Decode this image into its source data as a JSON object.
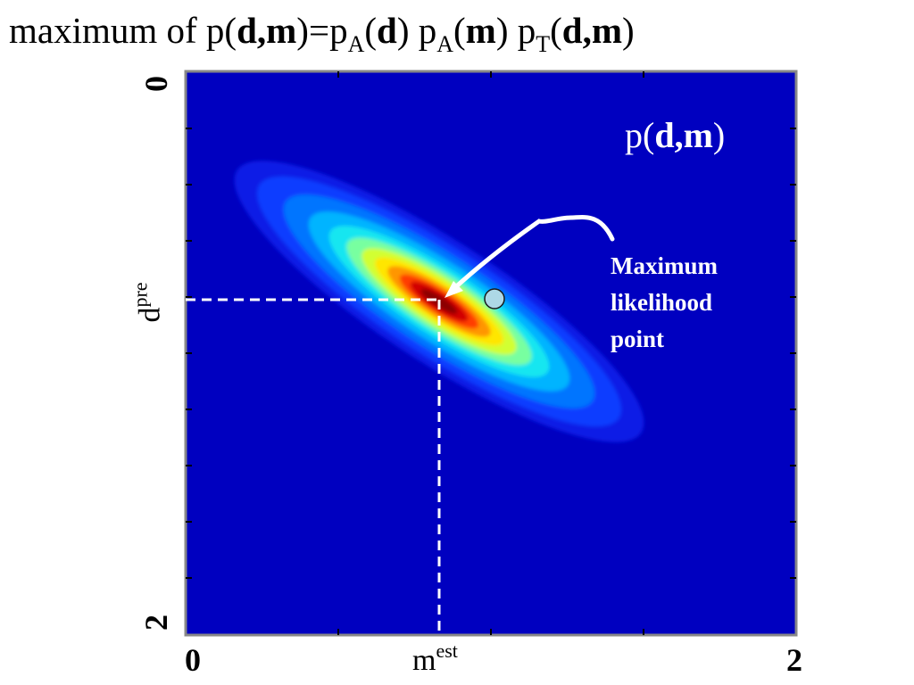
{
  "title": {
    "prefix": "maximum of ",
    "p": "p(",
    "d": "d",
    "comma": ",",
    "m": "m",
    "eq": ")=p",
    "sub_a": "A",
    "open": "(",
    "close_p": ") p",
    "sub_t": "T",
    "close": ")"
  },
  "plot": {
    "label_p": "p(",
    "label_d": "d",
    "label_comma": ",",
    "label_m": "m",
    "label_close": ")",
    "y_axis": {
      "top_tick": "0",
      "bottom_tick": "2",
      "var": "d",
      "var_sup": "pre"
    },
    "x_axis": {
      "left_tick": "0",
      "right_tick": "2",
      "var": "m",
      "var_sup": "est"
    },
    "annotation_lines": [
      "Maximum",
      "likelihood",
      "point"
    ],
    "colors": {
      "background": "#0000c0",
      "frame": "#888888",
      "marker_fill": "#add8e6",
      "dashed_lines": "#ffffff",
      "arrow": "#ffffff"
    },
    "chart_data": {
      "type": "heatmap",
      "xlim": [
        0,
        2
      ],
      "ylim": [
        0,
        2
      ],
      "distribution": {
        "center_m": 0.82,
        "center_d": 0.92,
        "principal_axis_angle_deg": -33,
        "sigma_major": 0.48,
        "sigma_minor": 0.09
      },
      "max_likelihood_point": {
        "m": 0.82,
        "d": 0.92
      },
      "marker_point": {
        "m": 1.01,
        "d": 0.92
      }
    }
  }
}
